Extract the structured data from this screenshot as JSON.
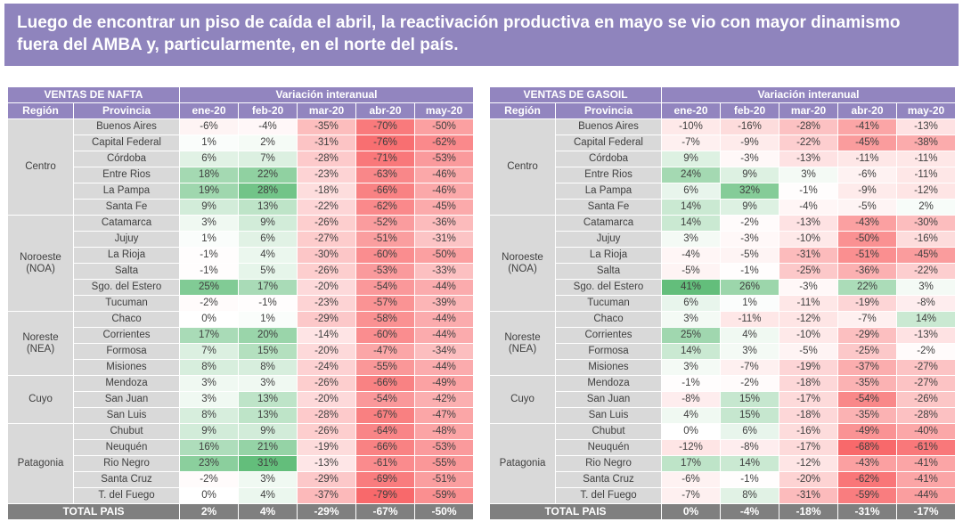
{
  "banner": {
    "text": "Luego de encontrar un piso de caída el abril, la reactivación productiva en mayo se vio con mayor dinamismo fuera del AMBA y, particularmente, en el norte del país.",
    "bg_color": "#8f84bd",
    "text_color": "#ffffff"
  },
  "colors": {
    "header_bg": "#9285bf",
    "header_text": "#ffffff",
    "label_bg": "#d9d9d9",
    "total_bg": "#7f7f7f",
    "cell_text": "#404040",
    "scale_negative": "#f8696b",
    "scale_zero": "#ffffff",
    "scale_positive": "#63be7b"
  },
  "chart_data": [
    {
      "type": "heatmap",
      "title": "VENTAS DE NAFTA",
      "group_header": "Variación interanual",
      "region_header": "Región",
      "province_header": "Provincia",
      "months": [
        "ene-20",
        "feb-20",
        "mar-20",
        "abr-20",
        "may-20"
      ],
      "unit": "%",
      "color_scale": {
        "min": -79,
        "max": 31
      },
      "regions": [
        {
          "name": "Centro",
          "provinces": [
            {
              "name": "Buenos Aires",
              "values": [
                -6,
                -4,
                -35,
                -70,
                -50
              ]
            },
            {
              "name": "Capital Federal",
              "values": [
                1,
                2,
                -31,
                -76,
                -62
              ]
            },
            {
              "name": "Córdoba",
              "values": [
                6,
                7,
                -28,
                -71,
                -53
              ]
            },
            {
              "name": "Entre Rios",
              "values": [
                18,
                22,
                -23,
                -63,
                -46
              ]
            },
            {
              "name": "La Pampa",
              "values": [
                19,
                28,
                -18,
                -66,
                -46
              ]
            },
            {
              "name": "Santa Fe",
              "values": [
                9,
                13,
                -22,
                -62,
                -45
              ]
            }
          ]
        },
        {
          "name": "Noroeste (NOA)",
          "provinces": [
            {
              "name": "Catamarca",
              "values": [
                3,
                9,
                -26,
                -52,
                -36
              ]
            },
            {
              "name": "Jujuy",
              "values": [
                1,
                6,
                -27,
                -51,
                -31
              ]
            },
            {
              "name": "La Rioja",
              "values": [
                -1,
                4,
                -30,
                -60,
                -50
              ]
            },
            {
              "name": "Salta",
              "values": [
                -1,
                5,
                -26,
                -53,
                -33
              ]
            },
            {
              "name": "Sgo. del Estero",
              "values": [
                25,
                17,
                -20,
                -54,
                -44
              ]
            },
            {
              "name": "Tucuman",
              "values": [
                -2,
                -1,
                -23,
                -57,
                -39
              ]
            }
          ]
        },
        {
          "name": "Noreste (NEA)",
          "provinces": [
            {
              "name": "Chaco",
              "values": [
                0,
                1,
                -29,
                -58,
                -44
              ]
            },
            {
              "name": "Corrientes",
              "values": [
                17,
                20,
                -14,
                -60,
                -44
              ]
            },
            {
              "name": "Formosa",
              "values": [
                7,
                15,
                -20,
                -47,
                -34
              ]
            },
            {
              "name": "Misiones",
              "values": [
                8,
                8,
                -24,
                -55,
                -44
              ]
            }
          ]
        },
        {
          "name": "Cuyo",
          "provinces": [
            {
              "name": "Mendoza",
              "values": [
                3,
                3,
                -26,
                -66,
                -49
              ]
            },
            {
              "name": "San Juan",
              "values": [
                3,
                13,
                -20,
                -54,
                -42
              ]
            },
            {
              "name": "San Luis",
              "values": [
                8,
                13,
                -28,
                -67,
                -47
              ]
            }
          ]
        },
        {
          "name": "Patagonia",
          "provinces": [
            {
              "name": "Chubut",
              "values": [
                9,
                9,
                -26,
                -64,
                -48
              ]
            },
            {
              "name": "Neuquén",
              "values": [
                16,
                21,
                -19,
                -66,
                -53
              ]
            },
            {
              "name": "Rio Negro",
              "values": [
                23,
                31,
                -13,
                -61,
                -55
              ]
            },
            {
              "name": "Santa Cruz",
              "values": [
                -2,
                3,
                -29,
                -69,
                -51
              ]
            },
            {
              "name": "T. del Fuego",
              "values": [
                0,
                4,
                -37,
                -79,
                -59
              ]
            }
          ]
        }
      ],
      "total": {
        "label": "TOTAL PAIS",
        "values": [
          2,
          4,
          -29,
          -67,
          -50
        ]
      }
    },
    {
      "type": "heatmap",
      "title": "VENTAS DE GASOIL",
      "group_header": "Variación interanual",
      "region_header": "Región",
      "province_header": "Provincia",
      "months": [
        "ene-20",
        "feb-20",
        "mar-20",
        "abr-20",
        "may-20"
      ],
      "unit": "%",
      "color_scale": {
        "min": -68,
        "max": 41
      },
      "regions": [
        {
          "name": "Centro",
          "provinces": [
            {
              "name": "Buenos Aires",
              "values": [
                -10,
                -16,
                -28,
                -41,
                -13
              ]
            },
            {
              "name": "Capital Federal",
              "values": [
                -7,
                -9,
                -22,
                -45,
                -38
              ]
            },
            {
              "name": "Córdoba",
              "values": [
                9,
                -3,
                -13,
                -11,
                -11
              ]
            },
            {
              "name": "Entre Rios",
              "values": [
                24,
                9,
                3,
                -6,
                -11
              ]
            },
            {
              "name": "La Pampa",
              "values": [
                6,
                32,
                -1,
                -9,
                -12
              ]
            },
            {
              "name": "Santa Fe",
              "values": [
                14,
                9,
                -4,
                -5,
                2
              ]
            }
          ]
        },
        {
          "name": "Noroeste (NOA)",
          "provinces": [
            {
              "name": "Catamarca",
              "values": [
                14,
                -2,
                -13,
                -43,
                -30
              ]
            },
            {
              "name": "Jujuy",
              "values": [
                3,
                -3,
                -10,
                -50,
                -16
              ]
            },
            {
              "name": "La Rioja",
              "values": [
                -4,
                -5,
                -31,
                -51,
                -45
              ]
            },
            {
              "name": "Salta",
              "values": [
                -5,
                -1,
                -25,
                -36,
                -22
              ]
            },
            {
              "name": "Sgo. del Estero",
              "values": [
                41,
                26,
                -3,
                22,
                3
              ]
            },
            {
              "name": "Tucuman",
              "values": [
                6,
                1,
                -11,
                -19,
                -8
              ]
            }
          ]
        },
        {
          "name": "Noreste (NEA)",
          "provinces": [
            {
              "name": "Chaco",
              "values": [
                3,
                -11,
                -12,
                -7,
                14
              ]
            },
            {
              "name": "Corrientes",
              "values": [
                25,
                4,
                -10,
                -29,
                -13
              ]
            },
            {
              "name": "Formosa",
              "values": [
                14,
                3,
                -5,
                -25,
                -2
              ]
            },
            {
              "name": "Misiones",
              "values": [
                3,
                -7,
                -19,
                -37,
                -27
              ]
            }
          ]
        },
        {
          "name": "Cuyo",
          "provinces": [
            {
              "name": "Mendoza",
              "values": [
                -1,
                -2,
                -18,
                -35,
                -27
              ]
            },
            {
              "name": "San Juan",
              "values": [
                -8,
                15,
                -17,
                -54,
                -26
              ]
            },
            {
              "name": "San Luis",
              "values": [
                4,
                15,
                -18,
                -35,
                -28
              ]
            }
          ]
        },
        {
          "name": "Patagonia",
          "provinces": [
            {
              "name": "Chubut",
              "values": [
                0,
                6,
                -16,
                -49,
                -40
              ]
            },
            {
              "name": "Neuquén",
              "values": [
                -12,
                -8,
                -17,
                -68,
                -61
              ]
            },
            {
              "name": "Rio Negro",
              "values": [
                17,
                14,
                -12,
                -43,
                -41
              ]
            },
            {
              "name": "Santa Cruz",
              "values": [
                -6,
                -1,
                -20,
                -62,
                -41
              ]
            },
            {
              "name": "T. del Fuego",
              "values": [
                -7,
                8,
                -31,
                -59,
                -44
              ]
            }
          ]
        }
      ],
      "total": {
        "label": "TOTAL PAIS",
        "values": [
          0,
          -4,
          -18,
          -31,
          -17
        ]
      }
    }
  ]
}
